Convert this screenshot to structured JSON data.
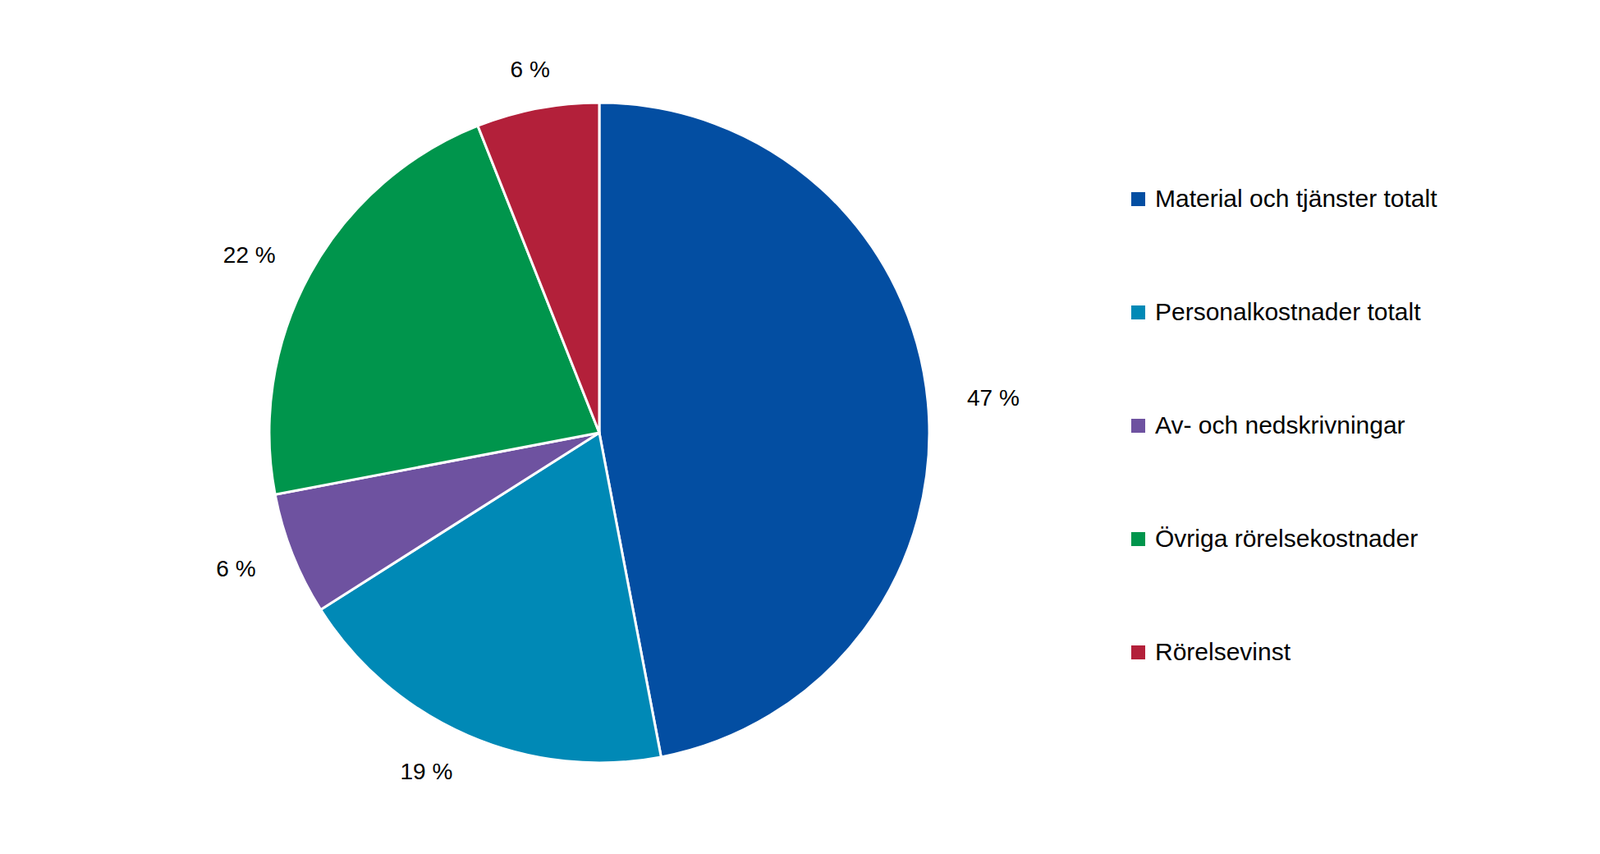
{
  "chart_data": {
    "type": "pie",
    "categories": [
      "Material och tjänster totalt",
      "Personalkostnader totalt",
      "Av- och nedskrivningar",
      "Övriga rörelsekostnader",
      "Rörelsevinst"
    ],
    "values": [
      47,
      19,
      6,
      22,
      6
    ],
    "value_labels": [
      "47 %",
      "19 %",
      "6 %",
      "22 %",
      "6 %"
    ],
    "colors": [
      "#034ea2",
      "#0089b6",
      "#6e52a0",
      "#00954c",
      "#b3203a"
    ],
    "data_labels": true,
    "legend": "right"
  }
}
